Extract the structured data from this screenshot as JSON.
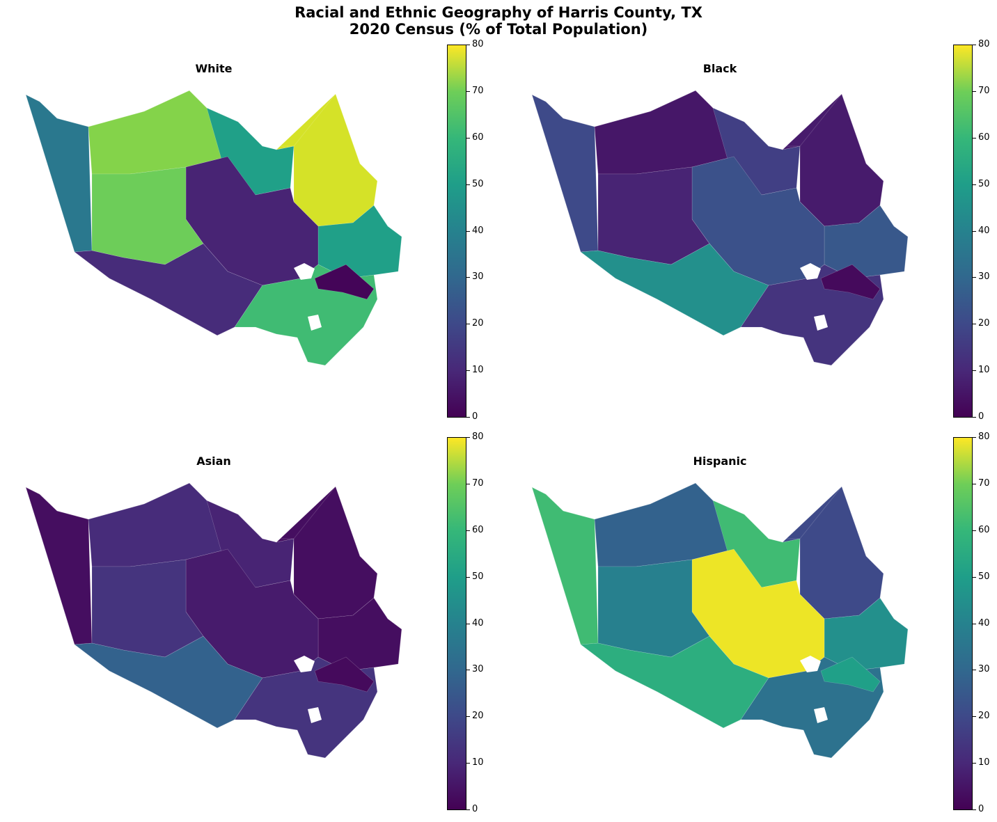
{
  "title_line1": "Racial and Ethnic Geography of Harris County, TX",
  "title_line2": "2020 Census (% of Total Population)",
  "colorbar": {
    "min": 0,
    "max": 80,
    "ticks": [
      "0",
      "10",
      "20",
      "30",
      "40",
      "50",
      "60",
      "70",
      "80"
    ],
    "colormap": "viridis"
  },
  "panels": [
    {
      "id": "white",
      "title": "White",
      "zones": [
        {
          "region": "far-west",
          "pct": 32
        },
        {
          "region": "north-west",
          "pct": 65
        },
        {
          "region": "north-central",
          "pct": 45
        },
        {
          "region": "north-east",
          "pct": 75
        },
        {
          "region": "east",
          "pct": 45
        },
        {
          "region": "core",
          "pct": 8
        },
        {
          "region": "west-central",
          "pct": 62
        },
        {
          "region": "south-west",
          "pct": 10
        },
        {
          "region": "south-east",
          "pct": 55
        },
        {
          "region": "bay-strip",
          "pct": 1
        }
      ]
    },
    {
      "id": "black",
      "title": "Black",
      "zones": [
        {
          "region": "far-west",
          "pct": 18
        },
        {
          "region": "north-west",
          "pct": 5
        },
        {
          "region": "north-central",
          "pct": 15
        },
        {
          "region": "north-east",
          "pct": 6
        },
        {
          "region": "east",
          "pct": 22
        },
        {
          "region": "core",
          "pct": 20
        },
        {
          "region": "west-central",
          "pct": 8
        },
        {
          "region": "south-west",
          "pct": 40
        },
        {
          "region": "south-east",
          "pct": 12
        },
        {
          "region": "bay-strip",
          "pct": 2
        }
      ]
    },
    {
      "id": "asian",
      "title": "Asian",
      "zones": [
        {
          "region": "far-west",
          "pct": 3
        },
        {
          "region": "north-west",
          "pct": 10
        },
        {
          "region": "north-central",
          "pct": 8
        },
        {
          "region": "north-east",
          "pct": 3
        },
        {
          "region": "east",
          "pct": 3
        },
        {
          "region": "core",
          "pct": 6
        },
        {
          "region": "west-central",
          "pct": 12
        },
        {
          "region": "south-west",
          "pct": 25
        },
        {
          "region": "south-east",
          "pct": 12
        },
        {
          "region": "bay-strip",
          "pct": 2
        }
      ]
    },
    {
      "id": "hispanic",
      "title": "Hispanic",
      "zones": [
        {
          "region": "far-west",
          "pct": 55
        },
        {
          "region": "north-west",
          "pct": 25
        },
        {
          "region": "north-central",
          "pct": 55
        },
        {
          "region": "north-east",
          "pct": 18
        },
        {
          "region": "east",
          "pct": 40
        },
        {
          "region": "core",
          "pct": 78
        },
        {
          "region": "west-central",
          "pct": 35
        },
        {
          "region": "south-west",
          "pct": 50
        },
        {
          "region": "south-east",
          "pct": 30
        },
        {
          "region": "bay-strip",
          "pct": 45
        }
      ]
    }
  ]
}
